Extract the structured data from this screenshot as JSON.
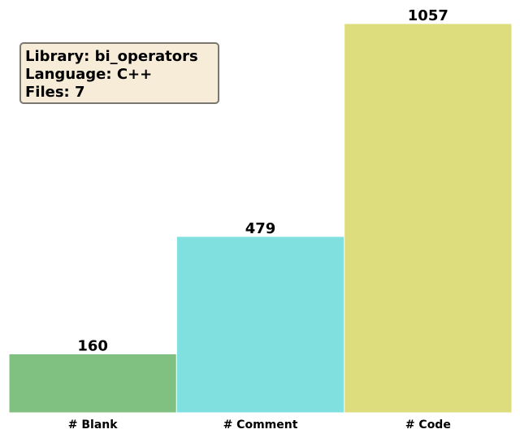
{
  "chart_data": {
    "type": "bar",
    "categories": [
      "# Blank",
      "# Comment",
      "# Code"
    ],
    "values": [
      160,
      479,
      1057
    ],
    "colors": [
      "#80c080",
      "#80e0e0",
      "#dedd7e"
    ],
    "ylim": [
      0,
      1057
    ],
    "grid": false,
    "title": "",
    "xlabel": "",
    "ylabel": ""
  },
  "info_box": {
    "lines": [
      "Library: bi_operators",
      "Language: C++",
      "Files: 7"
    ]
  }
}
